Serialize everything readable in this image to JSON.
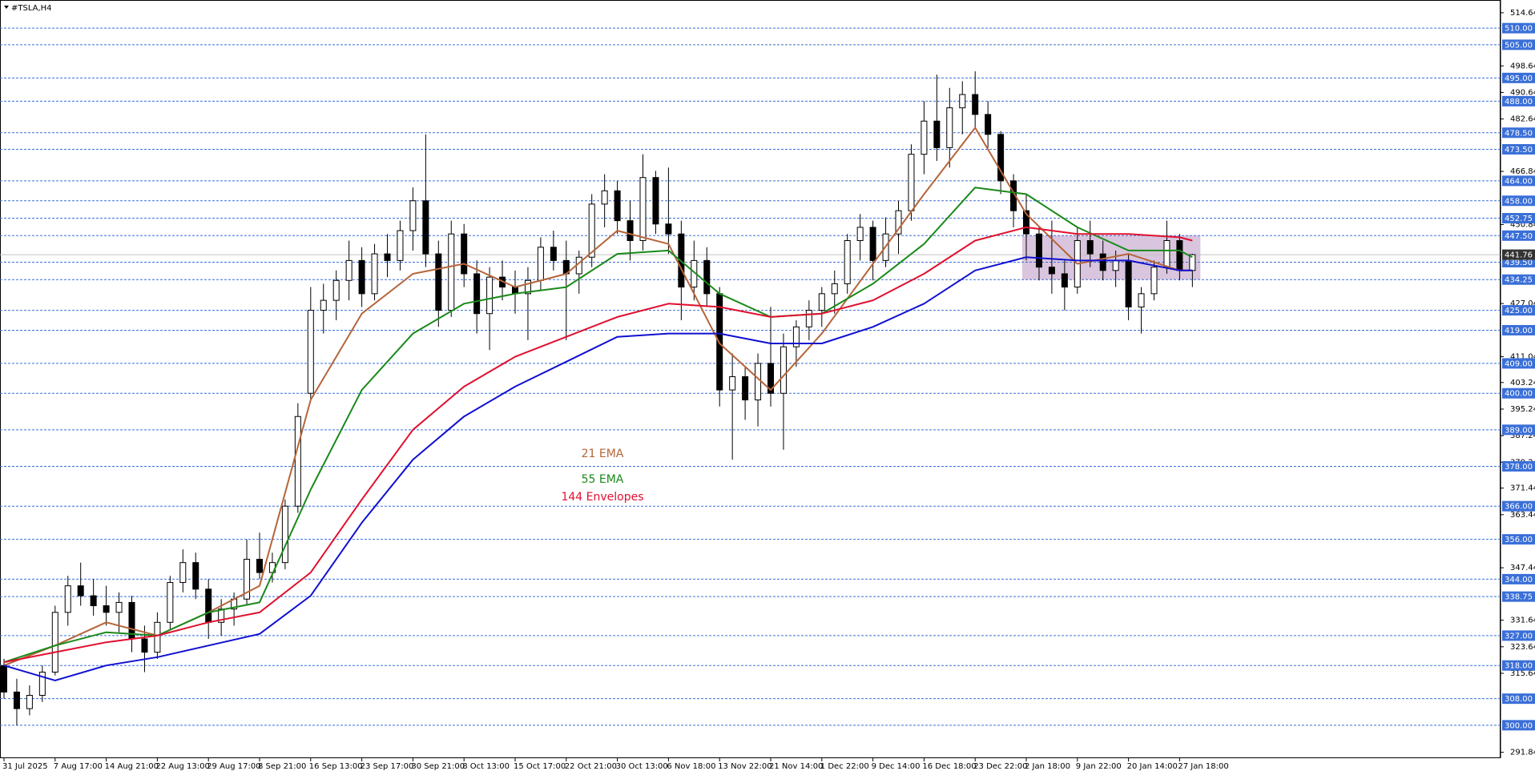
{
  "chart_data": {
    "type": "candlestick",
    "title": "#TSLA,H4",
    "categories": [
      "31 Jul 2025",
      null,
      null,
      null,
      "7 Aug 17:00",
      null,
      null,
      null,
      "14 Aug 21:00",
      null,
      null,
      null,
      "22 Aug 13:00",
      null,
      null,
      null,
      "29 Aug 17:00",
      null,
      null,
      null,
      "8 Sep 21:00",
      null,
      null,
      null,
      "16 Sep 13:00",
      null,
      null,
      null,
      "23 Sep 17:00",
      null,
      null,
      null,
      "30 Sep 21:00",
      null,
      null,
      null,
      "8 Oct 13:00",
      null,
      null,
      null,
      "15 Oct 17:00",
      null,
      null,
      null,
      "22 Oct 21:00",
      null,
      null,
      null,
      "30 Oct 13:00",
      null,
      null,
      null,
      "6 Nov 18:00",
      null,
      null,
      null,
      "13 Nov 22:00",
      null,
      null,
      null,
      "21 Nov 14:00",
      null,
      null,
      null,
      "1 Dec 22:00",
      null,
      null,
      null,
      "9 Dec 14:00",
      null,
      null,
      null,
      "16 Dec 18:00",
      null,
      null,
      null,
      "23 Dec 22:00",
      null,
      null,
      null,
      "2 Jan 18:00",
      null,
      null,
      null,
      "9 Jan 22:00",
      null,
      null,
      null,
      "20 Jan 14:00",
      null,
      null,
      null,
      "27 Jan 18:00",
      null
    ],
    "open": [
      318,
      310,
      305,
      309,
      316,
      334,
      342,
      339,
      336,
      334,
      337,
      326,
      322,
      331,
      343,
      349,
      341,
      331,
      335,
      338,
      350,
      346,
      349,
      366,
      400,
      425,
      428,
      434,
      440,
      430,
      442,
      440,
      449,
      458,
      442,
      425,
      448,
      436,
      424,
      435,
      432,
      430,
      434,
      444,
      440,
      436,
      441,
      457,
      461,
      452,
      446,
      465,
      451,
      448,
      432,
      440,
      430,
      401,
      405,
      398,
      409,
      400,
      414,
      420,
      425,
      430,
      433,
      446,
      450,
      440,
      448,
      455,
      472,
      482,
      474,
      486,
      490,
      484,
      478,
      464,
      455,
      448,
      438,
      436,
      432,
      446,
      442,
      437,
      440,
      426,
      430,
      438,
      446,
      437
    ],
    "high": [
      320,
      314,
      312,
      318,
      336,
      345,
      349,
      344,
      342,
      340,
      339,
      330,
      334,
      345,
      353,
      352,
      344,
      338,
      340,
      356,
      358,
      352,
      368,
      397,
      432,
      433,
      437,
      446,
      444,
      445,
      448,
      452,
      462,
      478,
      446,
      452,
      451,
      440,
      438,
      440,
      437,
      438,
      447,
      449,
      446,
      443,
      460,
      466,
      464,
      458,
      472,
      467,
      468,
      452,
      446,
      444,
      432,
      412,
      408,
      412,
      426,
      418,
      422,
      428,
      432,
      437,
      448,
      454,
      452,
      453,
      458,
      475,
      488,
      496,
      492,
      494,
      497,
      488,
      479,
      466,
      460,
      450,
      452,
      440,
      450,
      452,
      446,
      443,
      442,
      432,
      440,
      452,
      448,
      442
    ],
    "low": [
      308,
      300,
      303,
      307,
      315,
      330,
      336,
      333,
      330,
      328,
      322,
      316,
      320,
      329,
      340,
      338,
      326,
      327,
      330,
      336,
      344,
      343,
      347,
      364,
      398,
      418,
      422,
      428,
      426,
      428,
      435,
      437,
      443,
      438,
      420,
      423,
      432,
      418,
      413,
      428,
      424,
      416,
      431,
      437,
      416,
      430,
      438,
      450,
      448,
      440,
      443,
      448,
      442,
      422,
      428,
      426,
      396,
      380,
      392,
      390,
      396,
      383,
      408,
      416,
      420,
      424,
      430,
      440,
      434,
      438,
      442,
      452,
      466,
      470,
      468,
      478,
      480,
      474,
      460,
      450,
      440,
      434,
      430,
      425,
      430,
      438,
      434,
      432,
      422,
      418,
      428,
      436,
      434,
      432
    ],
    "close": [
      310,
      305,
      309,
      316,
      334,
      342,
      339,
      336,
      334,
      337,
      326,
      322,
      331,
      343,
      349,
      341,
      331,
      335,
      338,
      350,
      346,
      349,
      366,
      393,
      425,
      428,
      434,
      440,
      430,
      442,
      440,
      449,
      458,
      442,
      425,
      448,
      436,
      424,
      435,
      432,
      430,
      434,
      444,
      440,
      436,
      441,
      457,
      461,
      452,
      446,
      465,
      451,
      448,
      432,
      440,
      430,
      401,
      405,
      398,
      409,
      400,
      414,
      420,
      425,
      430,
      433,
      446,
      450,
      440,
      448,
      455,
      472,
      482,
      474,
      486,
      490,
      484,
      478,
      464,
      455,
      448,
      438,
      436,
      432,
      446,
      442,
      437,
      440,
      426,
      430,
      438,
      446,
      437,
      441.76
    ],
    "up_color": "#ffffff",
    "down_color": "#000000",
    "series": [
      {
        "name": "21 EMA",
        "color": "#b5653a",
        "x": [
          0,
          4,
          8,
          12,
          16,
          20,
          24,
          28,
          32,
          36,
          40,
          44,
          48,
          52,
          56,
          60,
          64,
          68,
          72,
          76,
          80,
          84,
          88,
          92,
          93
        ],
        "values": [
          318,
          324,
          331,
          327,
          334,
          342,
          398,
          424,
          436,
          439,
          432,
          436,
          449,
          445,
          415,
          401,
          418,
          439,
          460,
          480,
          454,
          439,
          442,
          437,
          437
        ]
      },
      {
        "name": "55 EMA",
        "color": "#1a8a1a",
        "x": [
          0,
          4,
          8,
          12,
          16,
          20,
          24,
          28,
          32,
          36,
          40,
          44,
          48,
          52,
          56,
          60,
          64,
          68,
          72,
          76,
          80,
          84,
          88,
          92,
          93
        ],
        "values": [
          319,
          324,
          328,
          327,
          334,
          337,
          371,
          401,
          418,
          427,
          430,
          432,
          442,
          443,
          430,
          423,
          424,
          433,
          445,
          462,
          460,
          450,
          443,
          443,
          441
        ]
      },
      {
        "name": "144 Envelopes",
        "color": "#e0102f",
        "x": [
          0,
          4,
          8,
          12,
          16,
          20,
          24,
          28,
          32,
          36,
          40,
          44,
          48,
          52,
          56,
          60,
          64,
          68,
          72,
          76,
          80,
          84,
          88,
          92,
          93
        ],
        "values": [
          319,
          322,
          325,
          327,
          331,
          334,
          346,
          368,
          389,
          402,
          411,
          417,
          423,
          427,
          426,
          423,
          424,
          428,
          436,
          446,
          450,
          448,
          448,
          447,
          446
        ]
      },
      {
        "color": "#1010d0",
        "x": [
          0,
          4,
          8,
          12,
          16,
          20,
          24,
          28,
          32,
          36,
          40,
          44,
          48,
          52,
          56,
          60,
          64,
          68,
          72,
          76,
          80,
          84,
          88,
          92,
          93
        ],
        "values": [
          318,
          313.5,
          318,
          320.5,
          324,
          327.5,
          339,
          361,
          380,
          393,
          402,
          409.5,
          417,
          418,
          418,
          415,
          415,
          420,
          427,
          437,
          441,
          440,
          440,
          437,
          437
        ]
      }
    ],
    "ylim": [
      290.07,
      518.48
    ],
    "yticks": [
      514.64,
      498.64,
      490.64,
      482.64,
      466.84,
      450.84,
      427.04,
      411.04,
      403.24,
      395.24,
      387.24,
      379.24,
      371.44,
      363.44,
      347.44,
      331.64,
      323.64,
      315.64,
      291.84
    ],
    "levels": [
      {
        "value": 510,
        "label": "510.00"
      },
      {
        "value": 505,
        "label": "505.00"
      },
      {
        "value": 495,
        "label": "495.00"
      },
      {
        "value": 488,
        "label": "488.00"
      },
      {
        "value": 478.5,
        "label": "478.50"
      },
      {
        "value": 473.5,
        "label": "473.50"
      },
      {
        "value": 464,
        "label": "464.00"
      },
      {
        "value": 458,
        "label": "458.00"
      },
      {
        "value": 452.75,
        "label": "452.75"
      },
      {
        "value": 447.5,
        "label": "447.50"
      },
      {
        "value": 439.5,
        "label": "439.50"
      },
      {
        "value": 434.25,
        "label": "434.25"
      },
      {
        "value": 425,
        "label": "425.00"
      },
      {
        "value": 419,
        "label": "419.00"
      },
      {
        "value": 409,
        "label": "409.00"
      },
      {
        "value": 400,
        "label": "400.00"
      },
      {
        "value": 389,
        "label": "389.00"
      },
      {
        "value": 378,
        "label": "378.00"
      },
      {
        "value": 366,
        "label": "366.00"
      },
      {
        "value": 356,
        "label": "356.00"
      },
      {
        "value": 344,
        "label": "344.00"
      },
      {
        "value": 338.75,
        "label": "338.75"
      },
      {
        "value": 327,
        "label": "327.00"
      },
      {
        "value": 318,
        "label": "318.00"
      },
      {
        "value": 308,
        "label": "308.00"
      },
      {
        "value": 300,
        "label": "300.00"
      }
    ],
    "level_color": "#3a6fd8",
    "current_price": 441.76,
    "zone": {
      "x": [
        80,
        93
      ],
      "y": [
        434.25,
        447.5
      ],
      "color": "#b48cbe"
    }
  }
}
